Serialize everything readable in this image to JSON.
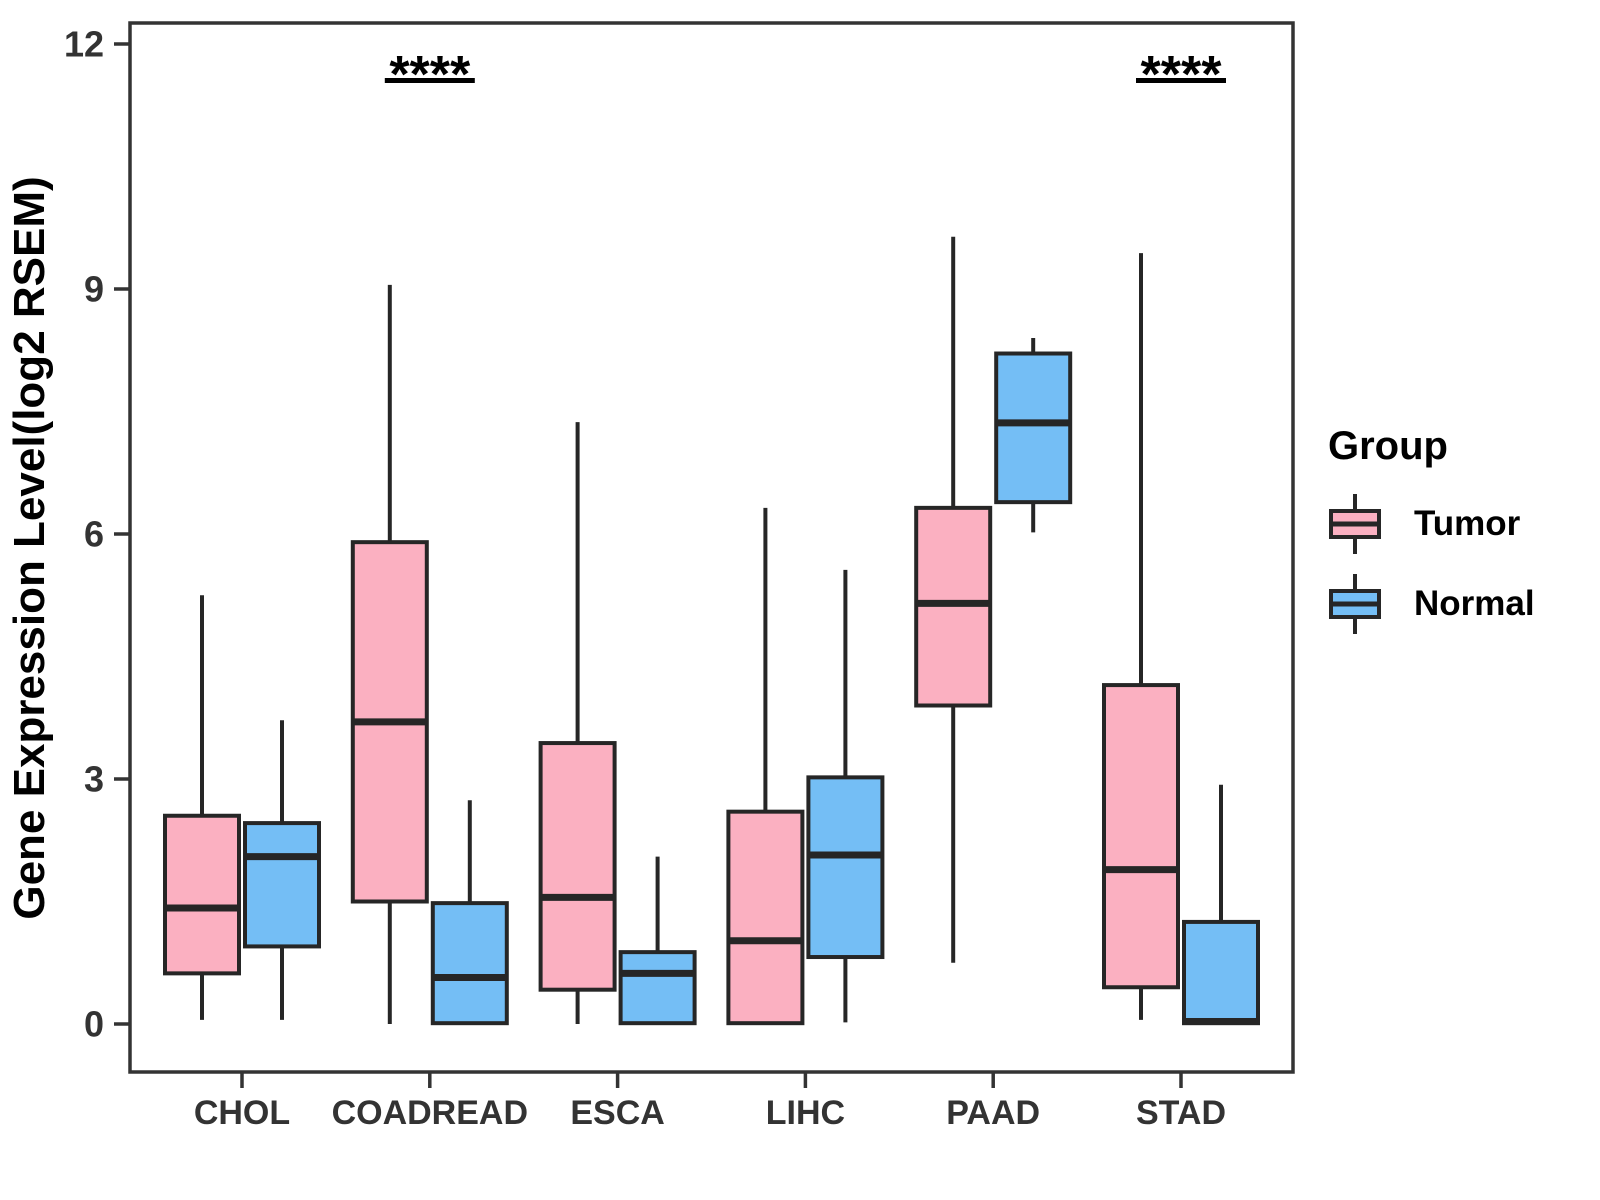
{
  "chart_data": {
    "type": "boxplot",
    "title": "",
    "xlabel": "",
    "ylabel": "Gene Expression Level(log2 RSEM)",
    "ylim": [
      0,
      12
    ],
    "yticks": [
      0,
      3,
      6,
      9,
      12
    ],
    "grid": "off",
    "categories": [
      "CHOL",
      "COADREAD",
      "ESCA",
      "LIHC",
      "PAAD",
      "STAD"
    ],
    "series": [
      {
        "name": "Tumor",
        "color": "#FBB0C1",
        "boxes": [
          {
            "low": 0.05,
            "q1": 0.62,
            "median": 1.42,
            "q3": 2.55,
            "high": 5.25
          },
          {
            "low": 0.0,
            "q1": 1.5,
            "median": 3.7,
            "q3": 5.9,
            "high": 9.05
          },
          {
            "low": 0.0,
            "q1": 0.42,
            "median": 1.55,
            "q3": 3.44,
            "high": 7.37
          },
          {
            "low": 0.0,
            "q1": 0.01,
            "median": 1.02,
            "q3": 2.6,
            "high": 6.32
          },
          {
            "low": 0.75,
            "q1": 3.9,
            "median": 5.15,
            "q3": 6.32,
            "high": 9.64
          },
          {
            "low": 0.05,
            "q1": 0.45,
            "median": 1.89,
            "q3": 4.15,
            "high": 9.44
          }
        ]
      },
      {
        "name": "Normal",
        "color": "#74BEF5",
        "boxes": [
          {
            "low": 0.05,
            "q1": 0.95,
            "median": 2.05,
            "q3": 2.46,
            "high": 3.72
          },
          {
            "low": 0.0,
            "q1": 0.01,
            "median": 0.57,
            "q3": 1.48,
            "high": 2.74
          },
          {
            "low": 0.0,
            "q1": 0.01,
            "median": 0.62,
            "q3": 0.88,
            "high": 2.05
          },
          {
            "low": 0.02,
            "q1": 0.82,
            "median": 2.07,
            "q3": 3.02,
            "high": 5.56
          },
          {
            "low": 6.02,
            "q1": 6.39,
            "median": 7.36,
            "q3": 8.21,
            "high": 8.4
          },
          {
            "low": 0.0,
            "q1": 0.01,
            "median": 0.03,
            "q3": 1.25,
            "high": 2.93
          }
        ]
      }
    ],
    "significance": [
      {
        "category": "COADREAD",
        "label": "****"
      },
      {
        "category": "STAD",
        "label": "****"
      }
    ],
    "legend": {
      "title": "Group",
      "position": "right",
      "entries": [
        "Tumor",
        "Normal"
      ]
    },
    "colors": {
      "tumor_fill": "#FBB0C1",
      "normal_fill": "#74BEF5",
      "box_stroke": "#262626",
      "axis_line": "#333333",
      "axis_text": "#333333",
      "significance": "#000000"
    }
  }
}
